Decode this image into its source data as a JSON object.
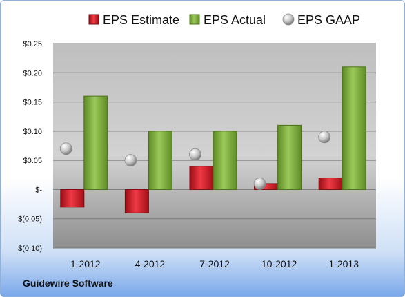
{
  "chart_data": {
    "type": "bar",
    "categories": [
      "1-2012",
      "4-2012",
      "7-2012",
      "10-2012",
      "1-2013"
    ],
    "series": [
      {
        "name": "EPS Estimate",
        "values": [
          -0.03,
          -0.04,
          0.04,
          0.01,
          0.02
        ],
        "color": "#d81e2a"
      },
      {
        "name": "EPS Actual",
        "values": [
          0.16,
          0.1,
          0.1,
          0.11,
          0.21
        ],
        "color": "#7fae3c"
      },
      {
        "name": "EPS GAAP",
        "values": [
          0.07,
          0.05,
          0.06,
          0.01,
          0.09
        ],
        "color": "#c8c8c8",
        "marker": "sphere"
      }
    ],
    "ylim": [
      -0.1,
      0.25
    ],
    "yticks": [
      0.25,
      0.2,
      0.15,
      0.1,
      0.05,
      0,
      -0.05,
      -0.1
    ],
    "ytick_labels": [
      "$0.25",
      "$0.20",
      "$0.15",
      "$0.10",
      "$0.05",
      "$-",
      "$(0.05)",
      "$(0.10)"
    ],
    "legend_position": "top",
    "grid": true
  },
  "footer": {
    "company": "Guidewire Software"
  }
}
